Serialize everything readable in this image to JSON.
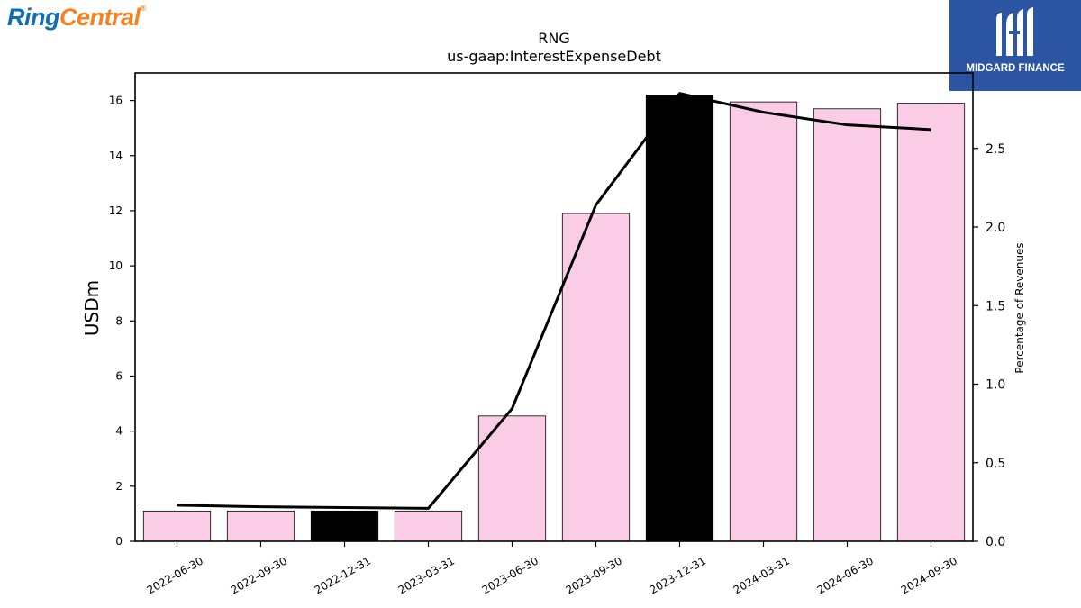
{
  "logos": {
    "left": {
      "part1": "Ring",
      "part2": "Central",
      "mark": "®"
    },
    "right": {
      "text": "MIDGARD FINANCE",
      "icon": "midgard-m-logo-icon"
    }
  },
  "colors": {
    "bar_default": "#fbcce6",
    "bar_highlight": "#000000",
    "line": "#000000",
    "brand_right_bg": "#2c55a3"
  },
  "chart_data": {
    "type": "bar",
    "title": "RNG",
    "subtitle": "us-gaap:InterestExpenseDebt",
    "ylabel": "USDm",
    "y2label": "Percentage of Revenues",
    "categories": [
      "2022-06-30",
      "2022-09-30",
      "2022-12-31",
      "2023-03-31",
      "2023-06-30",
      "2023-09-30",
      "2023-12-31",
      "2024-03-31",
      "2024-06-30",
      "2024-09-30"
    ],
    "series": [
      {
        "type": "bar",
        "axis": "left",
        "values": [
          1.1,
          1.1,
          1.1,
          1.1,
          4.55,
          11.9,
          16.2,
          15.95,
          15.7,
          15.9
        ],
        "highlight": [
          false,
          false,
          true,
          false,
          false,
          false,
          true,
          false,
          false,
          false
        ]
      },
      {
        "type": "line",
        "axis": "right",
        "values": [
          0.23,
          0.22,
          0.215,
          0.21,
          0.845,
          2.14,
          2.85,
          2.73,
          2.65,
          2.62
        ]
      }
    ],
    "ylim": [
      0,
      17
    ],
    "y2lim": [
      0,
      2.98
    ],
    "yticks": [
      0,
      2,
      4,
      6,
      8,
      10,
      12,
      14,
      16
    ],
    "y2ticks": [
      "0.0",
      "0.5",
      "1.0",
      "1.5",
      "2.0",
      "2.5"
    ]
  }
}
